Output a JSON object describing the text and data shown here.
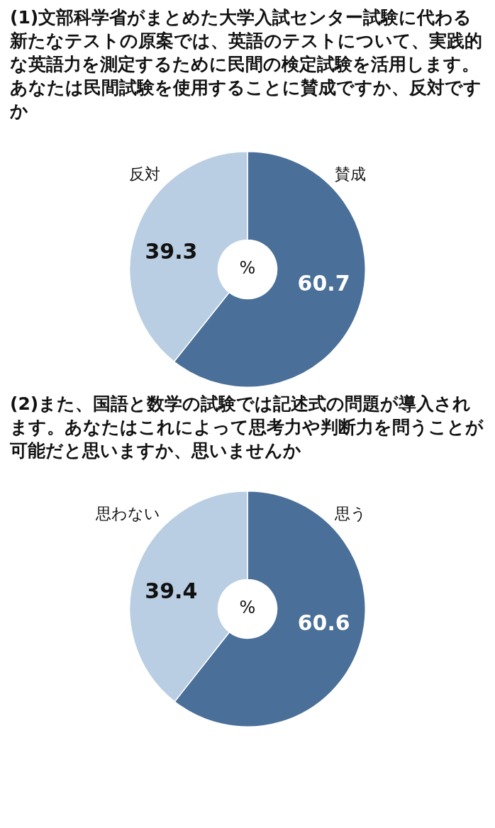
{
  "chart_data": [
    {
      "type": "donut",
      "title": "(1)文部科学省がまとめた大学入試センター試験に代わる新たなテストの原案では、英語のテストについて、実践的な英語力を測定するために民間の検定試験を活用します。あなたは民間試験を使用することに賛成ですか、反対ですか",
      "categories": [
        "賛成",
        "反対"
      ],
      "values": [
        60.7,
        39.3
      ],
      "colors": [
        "#4a6f98",
        "#b9cde3"
      ],
      "data_labels": true,
      "legend": false,
      "annotations": [
        "%"
      ]
    },
    {
      "type": "donut",
      "title": "(2)また、国語と数学の試験では記述式の問題が導入されます。あなたはこれによって思考力や判断力を問うことが可能だと思いますか、思いませんか",
      "categories": [
        "思う",
        "思わない"
      ],
      "values": [
        60.6,
        39.4
      ],
      "colors": [
        "#4a6f98",
        "#b9cde3"
      ],
      "data_labels": true,
      "legend": false,
      "annotations": [
        "%"
      ]
    }
  ]
}
